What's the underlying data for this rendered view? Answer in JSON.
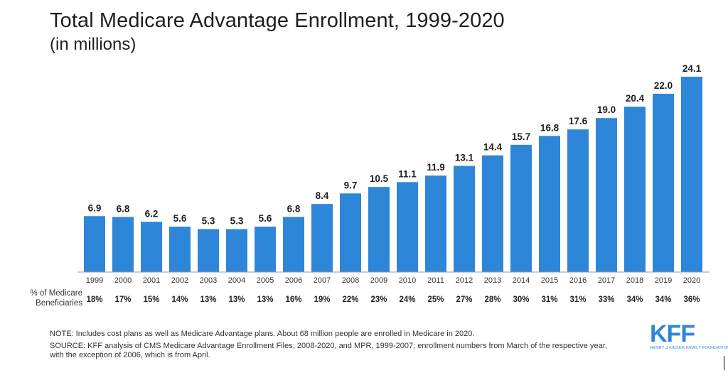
{
  "title": "Total Medicare Advantage Enrollment, 1999-2020",
  "subtitle": "(in millions)",
  "chart_data": {
    "type": "bar",
    "title": "Total Medicare Advantage Enrollment, 1999-2020",
    "subtitle": "(in millions)",
    "xlabel": "",
    "ylabel": "",
    "ylim": [
      0,
      24.1
    ],
    "categories": [
      "1999",
      "2000",
      "2001",
      "2002",
      "2003",
      "2004",
      "2005",
      "2006",
      "2007",
      "2008",
      "2009",
      "2010",
      "2011",
      "2012",
      "2013",
      "2014",
      "2015",
      "2016",
      "2017",
      "2018",
      "2019",
      "2020"
    ],
    "values": [
      6.9,
      6.8,
      6.2,
      5.6,
      5.3,
      5.3,
      5.6,
      6.8,
      8.4,
      9.7,
      10.5,
      11.1,
      11.9,
      13.1,
      14.4,
      15.7,
      16.8,
      17.6,
      19.0,
      20.4,
      22.0,
      24.1
    ],
    "value_labels": [
      "6.9",
      "6.8",
      "6.2",
      "5.6",
      "5.3",
      "5.3",
      "5.6",
      "6.8",
      "8.4",
      "9.7",
      "10.5",
      "11.1",
      "11.9",
      "13.1",
      "14.4",
      "15.7",
      "16.8",
      "17.6",
      "19.0",
      "20.4",
      "22.0",
      "24.1"
    ],
    "percent_row_label": "% of Medicare Beneficiaries",
    "percent_of_beneficiaries": [
      "18%",
      "17%",
      "15%",
      "14%",
      "13%",
      "13%",
      "13%",
      "16%",
      "19%",
      "22%",
      "23%",
      "24%",
      "25%",
      "27%",
      "28%",
      "30%",
      "31%",
      "31%",
      "33%",
      "34%",
      "34%",
      "36%"
    ],
    "bar_color": "#2e86d8",
    "grid": false,
    "legend": "none"
  },
  "notes": {
    "note": "NOTE: Includes  cost plans as well as Medicare Advantage plans. About 68 million people are enrolled in Medicare in 2020.",
    "source": "SOURCE: KFF analysis of CMS Medicare Advantage Enrollment Files, 2008-2020, and MPR, 1999-2007; enrollment numbers from March of the respective year, with the exception of 2006, which is from April."
  },
  "logo": {
    "mark": "KFF",
    "text": "HENRY J KAISER FAMILY FOUNDATION",
    "color": "#2e86d8"
  }
}
